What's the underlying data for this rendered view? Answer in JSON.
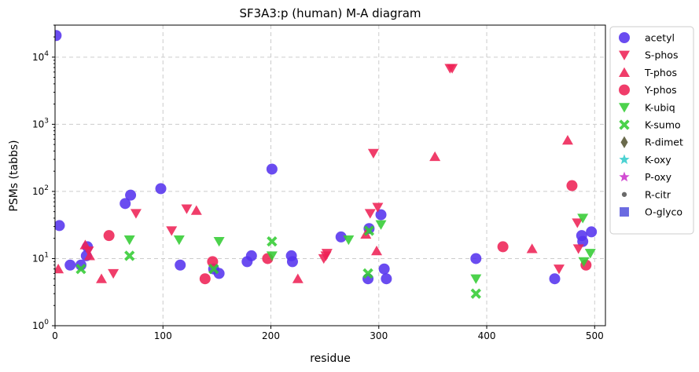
{
  "chart_data": {
    "type": "scatter",
    "title": "SF3A3:p (human) M-A diagram",
    "xlabel": "residue",
    "ylabel": "PSMs (tabbs)",
    "xlim": [
      0,
      510
    ],
    "ylim": [
      1,
      30000
    ],
    "yscale": "log",
    "x_ticks": [
      0,
      100,
      200,
      300,
      400,
      500
    ],
    "y_ticks": [
      {
        "value": 1,
        "base": "10",
        "exp": "0"
      },
      {
        "value": 10,
        "base": "10",
        "exp": "1"
      },
      {
        "value": 100,
        "base": "10",
        "exp": "2"
      },
      {
        "value": 1000,
        "base": "10",
        "exp": "3"
      },
      {
        "value": 10000,
        "base": "10",
        "exp": "4"
      }
    ],
    "grid": true,
    "legend_position": "outside-right",
    "series": [
      {
        "name": "acetyl",
        "marker": "circle",
        "color": "#5533ee",
        "points": [
          [
            1,
            21000
          ],
          [
            4,
            31
          ],
          [
            14,
            8
          ],
          [
            24,
            8
          ],
          [
            29,
            11
          ],
          [
            30,
            15
          ],
          [
            65,
            66
          ],
          [
            70,
            88
          ],
          [
            98,
            110
          ],
          [
            116,
            8
          ],
          [
            147,
            7
          ],
          [
            152,
            6
          ],
          [
            178,
            9
          ],
          [
            182,
            11
          ],
          [
            201,
            215
          ],
          [
            219,
            11
          ],
          [
            220,
            9
          ],
          [
            265,
            21
          ],
          [
            290,
            5
          ],
          [
            291,
            28
          ],
          [
            302,
            45
          ],
          [
            305,
            7
          ],
          [
            307,
            5
          ],
          [
            390,
            10
          ],
          [
            463,
            5
          ],
          [
            488,
            22
          ],
          [
            489,
            18
          ],
          [
            497,
            25
          ]
        ]
      },
      {
        "name": "S-phos",
        "marker": "triangle-down",
        "color": "#ee2255",
        "points": [
          [
            31,
            13
          ],
          [
            54,
            6
          ],
          [
            75,
            47
          ],
          [
            108,
            26
          ],
          [
            122,
            55
          ],
          [
            249,
            10
          ],
          [
            251,
            11
          ],
          [
            252,
            12
          ],
          [
            292,
            47
          ],
          [
            295,
            370
          ],
          [
            299,
            58
          ],
          [
            366,
            6800
          ],
          [
            368,
            6800
          ],
          [
            467,
            7
          ],
          [
            484,
            34
          ],
          [
            485,
            14
          ]
        ]
      },
      {
        "name": "T-phos",
        "marker": "triangle-up",
        "color": "#ee2255",
        "points": [
          [
            3,
            7
          ],
          [
            28,
            16
          ],
          [
            32,
            11
          ],
          [
            43,
            5
          ],
          [
            131,
            52
          ],
          [
            225,
            5
          ],
          [
            288,
            23
          ],
          [
            298,
            13
          ],
          [
            352,
            330
          ],
          [
            442,
            14
          ],
          [
            475,
            580
          ]
        ]
      },
      {
        "name": "Y-phos",
        "marker": "circle",
        "color": "#ee2255",
        "points": [
          [
            50,
            22
          ],
          [
            139,
            5
          ],
          [
            146,
            9
          ],
          [
            197,
            10
          ],
          [
            415,
            15
          ],
          [
            479,
            122
          ],
          [
            492,
            8
          ]
        ]
      },
      {
        "name": "K-ubiq",
        "marker": "triangle-down",
        "color": "#33cc33",
        "points": [
          [
            69,
            19
          ],
          [
            115,
            19
          ],
          [
            152,
            18
          ],
          [
            201,
            11
          ],
          [
            272,
            19
          ],
          [
            302,
            32
          ],
          [
            390,
            5
          ],
          [
            489,
            40
          ],
          [
            490,
            9
          ],
          [
            496,
            12
          ]
        ]
      },
      {
        "name": "K-sumo",
        "marker": "x",
        "color": "#33cc33",
        "points": [
          [
            24,
            7
          ],
          [
            69,
            11
          ],
          [
            147,
            7
          ],
          [
            201,
            18
          ],
          [
            290,
            6
          ],
          [
            291,
            26
          ],
          [
            390,
            3
          ]
        ]
      },
      {
        "name": "R-dimet",
        "marker": "diamond",
        "color": "#555533",
        "points": []
      },
      {
        "name": "K-oxy",
        "marker": "star",
        "color": "#33cccc",
        "points": []
      },
      {
        "name": "P-oxy",
        "marker": "star",
        "color": "#cc33cc",
        "points": []
      },
      {
        "name": "R-citr",
        "marker": "dot",
        "color": "#555555",
        "points": []
      },
      {
        "name": "O-glyco",
        "marker": "square",
        "color": "#5555dd",
        "points": []
      }
    ]
  }
}
